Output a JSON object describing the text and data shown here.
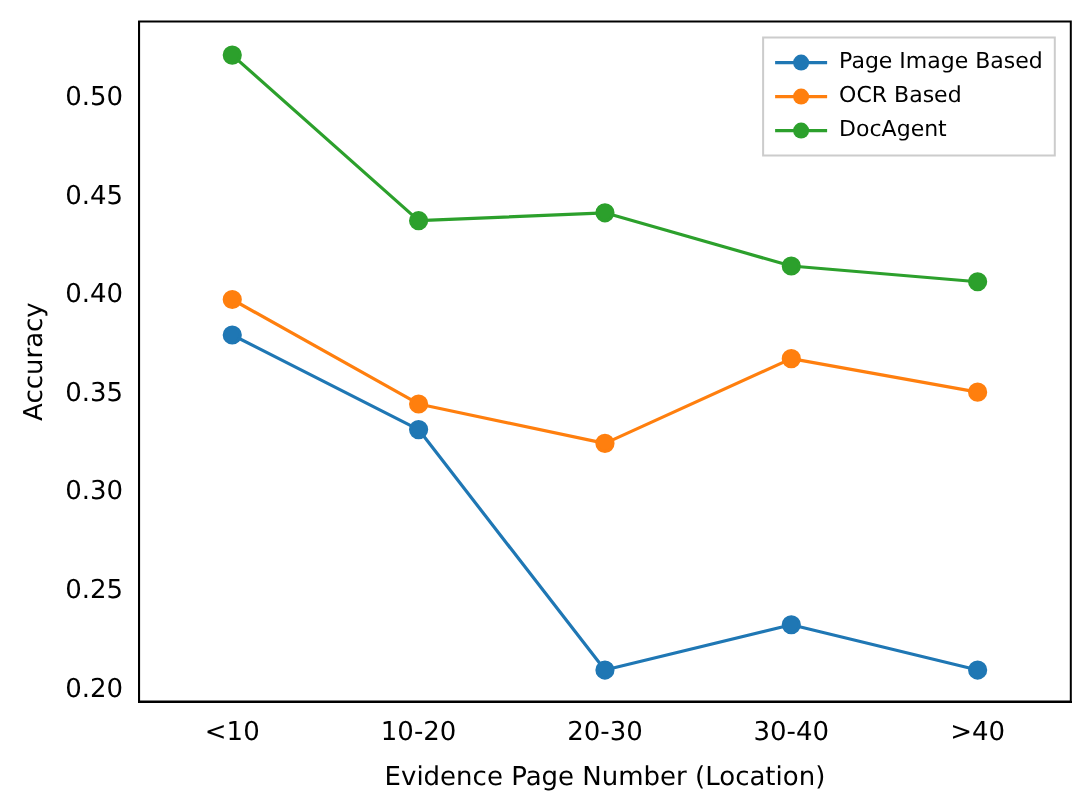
{
  "chart_data": {
    "type": "line",
    "xlabel": "Evidence Page Number (Location)",
    "ylabel": "Accuracy",
    "categories": [
      "<10",
      "10-20",
      "20-30",
      "30-40",
      ">40"
    ],
    "series": [
      {
        "name": "Page Image Based",
        "color": "#1f77b4",
        "values": [
          0.38,
          0.332,
          0.21,
          0.233,
          0.21
        ]
      },
      {
        "name": "OCR Based",
        "color": "#ff7f0e",
        "values": [
          0.398,
          0.345,
          0.325,
          0.368,
          0.351
        ]
      },
      {
        "name": "DocAgent",
        "color": "#2ca02c",
        "values": [
          0.522,
          0.438,
          0.442,
          0.415,
          0.407
        ]
      }
    ],
    "ylim": [
      0.194,
      0.539
    ],
    "yticks": [
      {
        "value": 0.2,
        "label": "0.20"
      },
      0.25,
      {
        "value": 0.3,
        "label": "0.30"
      },
      0.35,
      {
        "value": 0.4,
        "label": "0.40"
      },
      0.45,
      {
        "value": 0.5,
        "label": "0.50"
      }
    ],
    "grid": false,
    "legend": "top right",
    "marker": "circle",
    "line_style": "solid"
  }
}
